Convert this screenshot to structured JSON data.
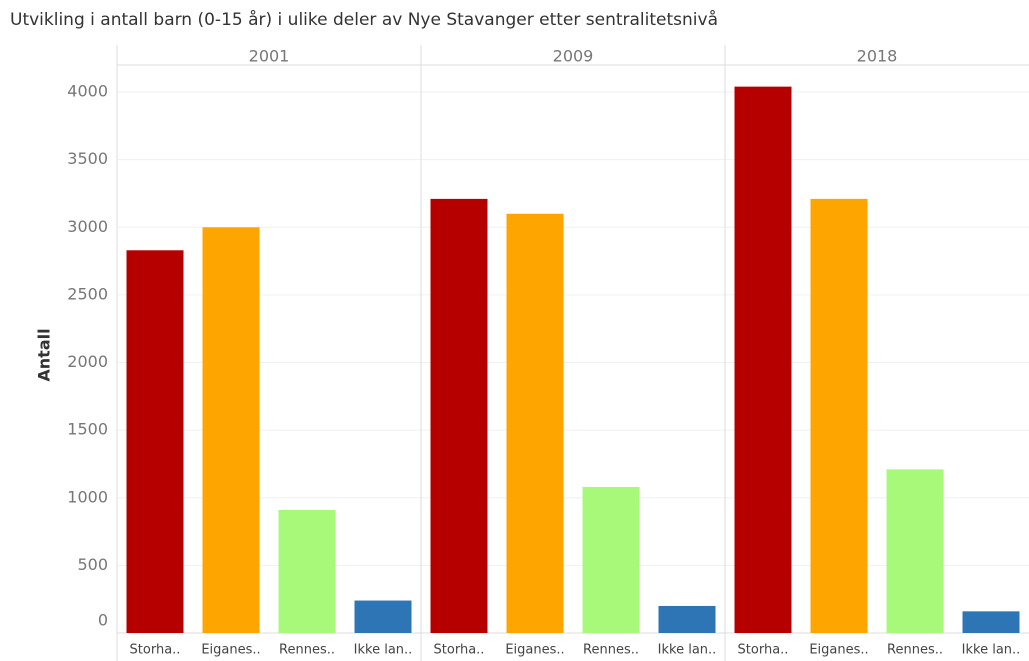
{
  "chart_data": {
    "type": "bar",
    "title": "Utvikling i antall barn (0-15 år) i ulike deler av Nye Stavanger etter sentralitetsnivå",
    "ylabel": "Antall",
    "categories": [
      "Storha..",
      "Eiganes..",
      "Rennes..",
      "Ikke lan.."
    ],
    "colors": [
      "#b60000",
      "#ffa500",
      "#a8f97a",
      "#2e75b6"
    ],
    "facets": [
      {
        "label": "2001",
        "values": [
          2830,
          3000,
          910,
          240
        ]
      },
      {
        "label": "2009",
        "values": [
          3210,
          3100,
          1080,
          200
        ]
      },
      {
        "label": "2018",
        "values": [
          4040,
          3210,
          1210,
          160
        ]
      }
    ],
    "ylim": [
      0,
      4200
    ],
    "yticks": [
      0,
      500,
      1000,
      1500,
      2000,
      2500,
      3000,
      3500,
      4000
    ],
    "grid": true
  }
}
